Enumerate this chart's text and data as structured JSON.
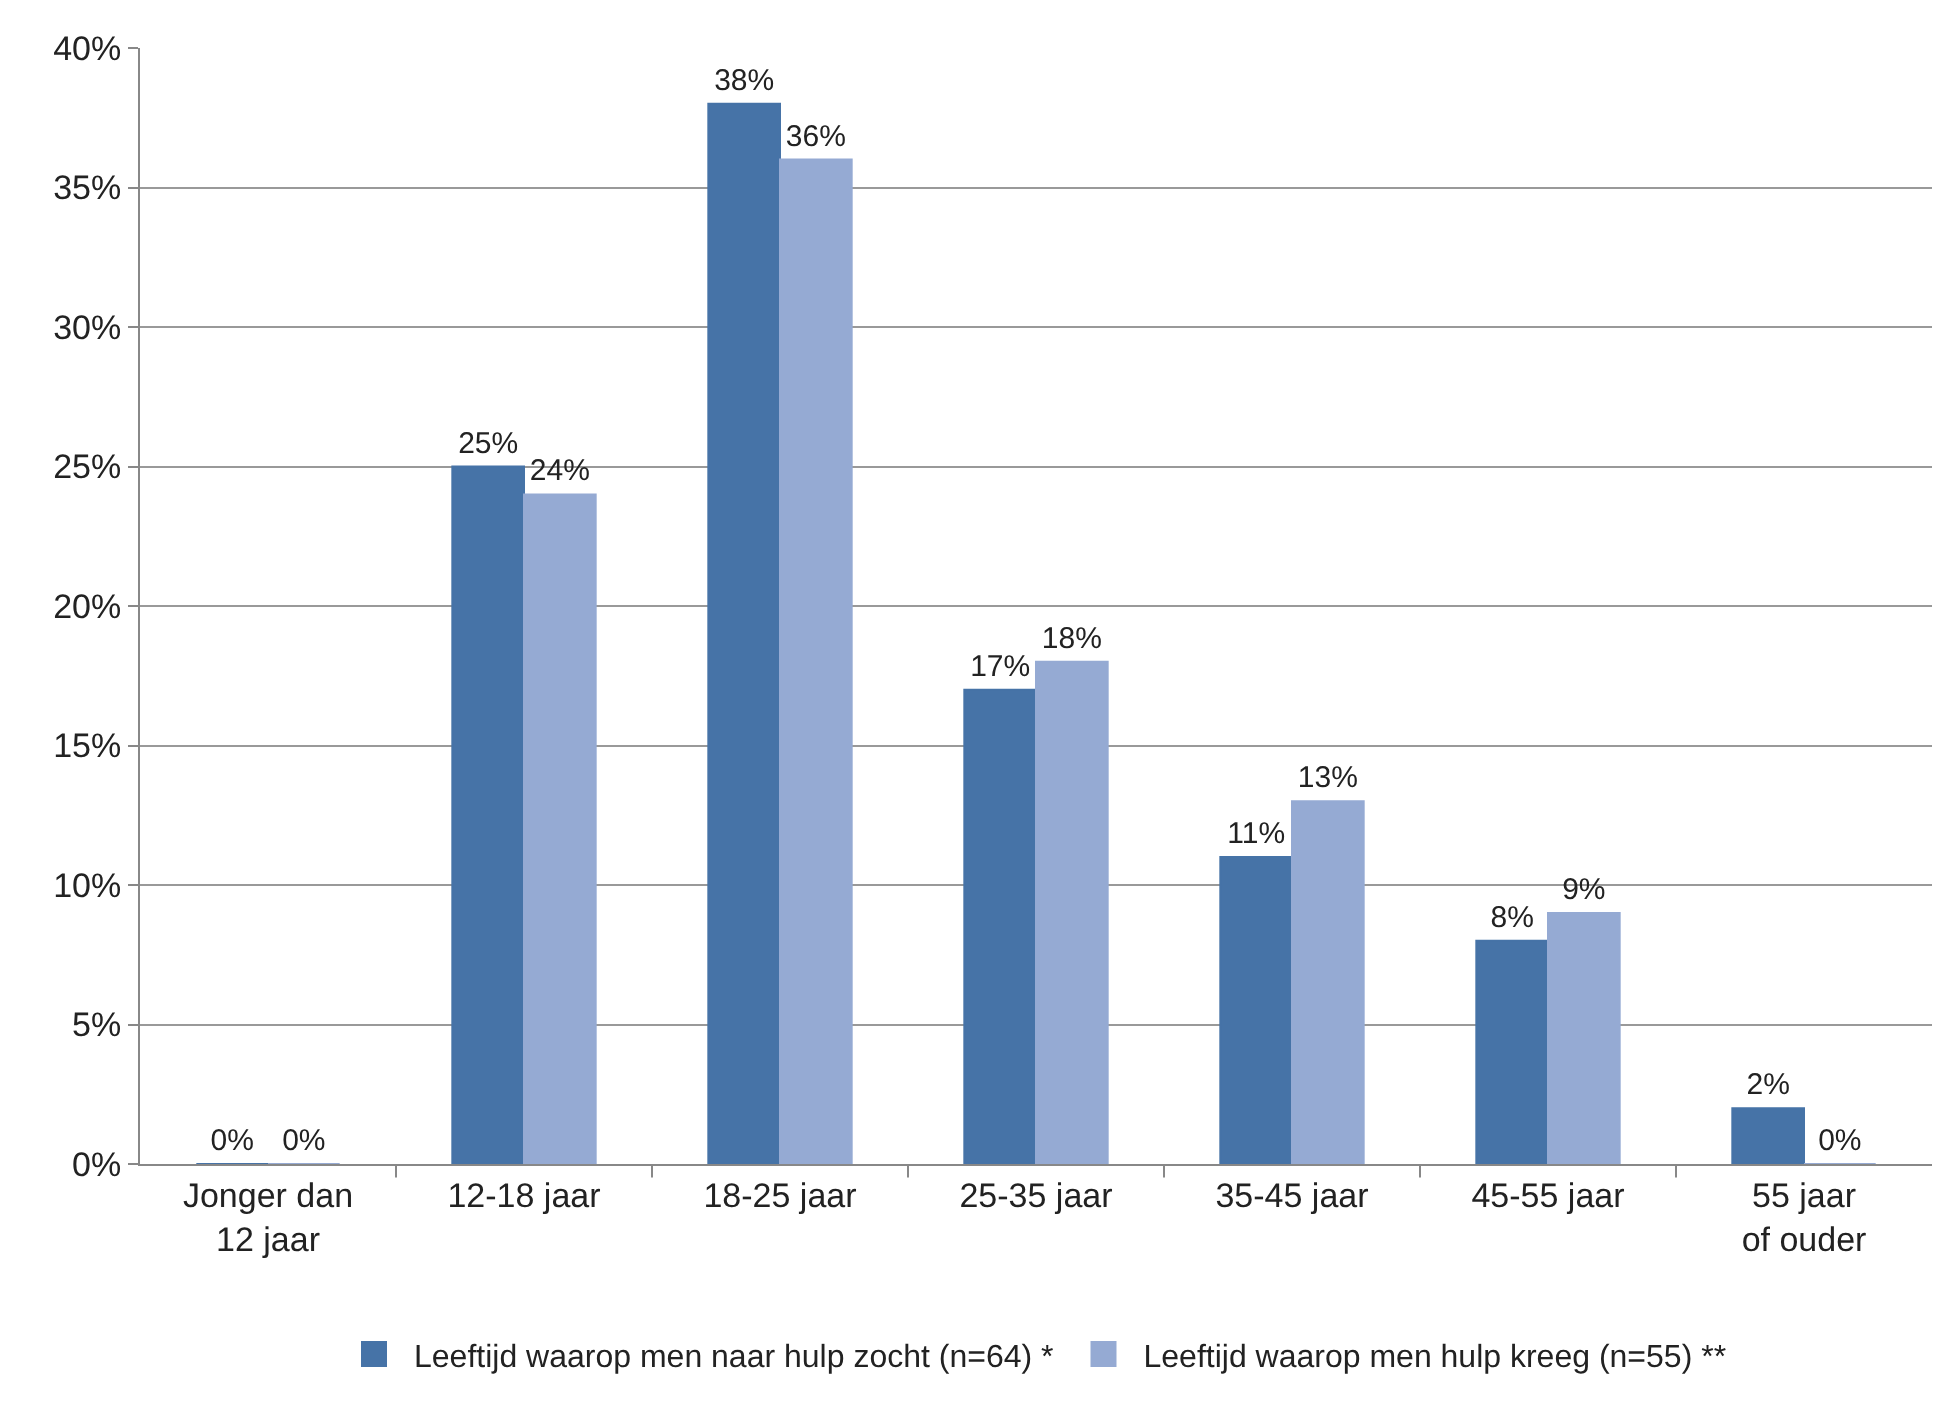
{
  "chart_data": {
    "type": "bar",
    "categories": [
      "Jonger dan 12 jaar",
      "12-18 jaar",
      "18-25 jaar",
      "25-35 jaar",
      "35-45 jaar",
      "45-55 jaar",
      "55 jaar of ouder"
    ],
    "series": [
      {
        "name": "Leeftijd waarop men naar hulp zocht (n=64) *",
        "color": "#4673a7",
        "values": [
          0,
          25,
          38,
          17,
          11,
          8,
          2
        ],
        "value_labels": [
          "0%",
          "25%",
          "38%",
          "17%",
          "11%",
          "8%",
          "2%"
        ]
      },
      {
        "name": "Leeftijd waarop men hulp kreeg (n=55) **",
        "color": "#95aad3",
        "values": [
          0,
          24,
          36,
          18,
          13,
          9,
          0
        ],
        "value_labels": [
          "0%",
          "24%",
          "36%",
          "18%",
          "13%",
          "9%",
          "0%"
        ]
      }
    ],
    "ylim": [
      0,
      40
    ],
    "yticks": [
      {
        "value": 0,
        "label": "0%"
      },
      {
        "value": 5,
        "label": "5%"
      },
      {
        "value": 10,
        "label": "10%"
      },
      {
        "value": 15,
        "label": "15%"
      },
      {
        "value": 20,
        "label": "20%"
      },
      {
        "value": 25,
        "label": "25%"
      },
      {
        "value": 30,
        "label": "30%"
      },
      {
        "value": 35,
        "label": "35%"
      },
      {
        "value": 40,
        "label": "40%"
      }
    ],
    "grid": "y",
    "legend": "bottom"
  }
}
